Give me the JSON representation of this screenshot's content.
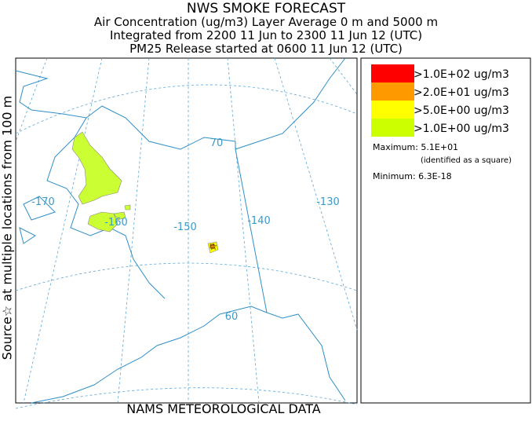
{
  "header": {
    "lines": [
      "NWS SMOKE FORECAST",
      "Air Concentration (ug/m3) Layer Average    0 m and  5000 m",
      "Integrated from 2200 11 Jun to 2300 11 Jun 12 (UTC)",
      "PM25 Release started at 0600 11 Jun 12 (UTC)"
    ]
  },
  "side_label": "Source☆ at multiple locations   from   100 m",
  "footer": "NAMS METEOROLOGICAL DATA",
  "legend": {
    "entries": [
      {
        "label": ">1.0E+02 ug/m3",
        "color": "#ff0000"
      },
      {
        "label": ">2.0E+01 ug/m3",
        "color": "#ff9900"
      },
      {
        "label": ">5.0E+00 ug/m3",
        "color": "#ffff00"
      },
      {
        "label": ">1.0E+00 ug/m3",
        "color": "#ccff00"
      }
    ],
    "maximum": "Maximum: 5.1E+01",
    "note": "(identified as a square)",
    "minimum": "Minimum: 6.3E-18"
  },
  "map": {
    "labels": [
      "70",
      "-170",
      "-160",
      "-150",
      "-140",
      "-130",
      "60"
    ]
  }
}
